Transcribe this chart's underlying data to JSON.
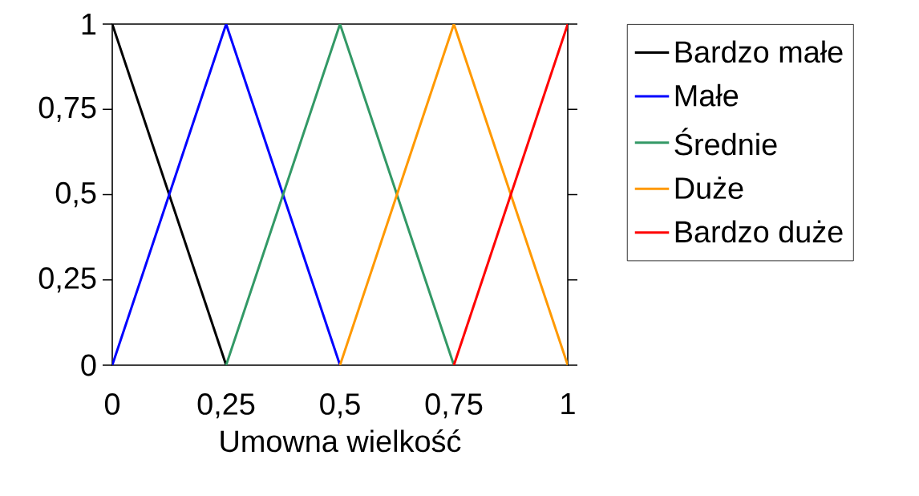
{
  "chart_data": {
    "type": "line",
    "xlabel": "Umowna wielkość",
    "xlim": [
      0,
      1
    ],
    "ylim": [
      0,
      1
    ],
    "xticks": [
      0,
      {
        "value": 0.25,
        "label": "0,25"
      },
      {
        "value": 0.5,
        "label": "0,5"
      },
      {
        "value": 0.75,
        "label": "0,75"
      },
      1
    ],
    "yticks": [
      0,
      {
        "value": 0.25,
        "label": "0,25"
      },
      {
        "value": 0.5,
        "label": "0,5"
      },
      {
        "value": 0.75,
        "label": "0,75"
      },
      1
    ],
    "grid": false,
    "legend": "right",
    "marker": "none",
    "line_style": "solid",
    "series": [
      {
        "name": "Bardzo małe",
        "color": "#000000",
        "x": [
          0,
          0.25
        ],
        "values": [
          1,
          0
        ]
      },
      {
        "name": "Małe",
        "color": "#0000ff",
        "x": [
          0,
          0.25,
          0.5
        ],
        "values": [
          0,
          1,
          0
        ]
      },
      {
        "name": "Średnie",
        "color": "#339966",
        "x": [
          0.25,
          0.5,
          0.75
        ],
        "values": [
          0,
          1,
          0
        ]
      },
      {
        "name": "Duże",
        "color": "#ff9900",
        "x": [
          0.5,
          0.75,
          1
        ],
        "values": [
          0,
          1,
          0
        ]
      },
      {
        "name": "Bardzo duże",
        "color": "#ff0000",
        "x": [
          0.75,
          1
        ],
        "values": [
          0,
          1
        ]
      }
    ]
  }
}
